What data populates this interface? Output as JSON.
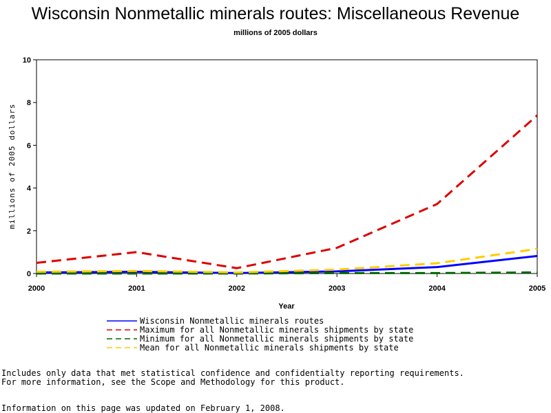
{
  "chart_data": {
    "type": "line",
    "title": "Wisconsin Nonmetallic minerals routes: Miscellaneous Revenue",
    "subtitle": "millions of 2005 dollars",
    "xlabel": "Year",
    "ylabel": "millions of 2005 dollars",
    "x": [
      "2000",
      "2001",
      "2002",
      "2003",
      "2004",
      "2005"
    ],
    "ylim": [
      0,
      10
    ],
    "yticks": [
      "0",
      "2",
      "4",
      "6",
      "8",
      "10"
    ],
    "grid": false,
    "legend_position": "bottom",
    "series": [
      {
        "name": "Wisconsin Nonmetallic minerals routes",
        "values": [
          0.05,
          0.08,
          0.02,
          0.1,
          0.3,
          0.82
        ],
        "color": "#0000ff",
        "style": "solid"
      },
      {
        "name": "Maximum for all Nonmetallic minerals shipments by state",
        "values": [
          0.5,
          1.0,
          0.25,
          1.2,
          3.25,
          7.4
        ],
        "color": "#dd0000",
        "style": "dashed"
      },
      {
        "name": "Minimum for all Nonmetallic minerals shipments by state",
        "values": [
          0.0,
          0.0,
          0.0,
          0.02,
          0.02,
          0.05
        ],
        "color": "#006600",
        "style": "dashed"
      },
      {
        "name": "Mean for all Nonmetallic minerals shipments by state",
        "values": [
          0.08,
          0.12,
          0.05,
          0.18,
          0.48,
          1.15
        ],
        "color": "#ffcc00",
        "style": "dashed"
      }
    ]
  },
  "notes": {
    "line1": "Includes only data that met statistical confidence and confidentialty reporting requirements.",
    "line2": "For more information, see the Scope and Methodology for this product.",
    "updated": "Information on this page was updated on February 1, 2008."
  }
}
